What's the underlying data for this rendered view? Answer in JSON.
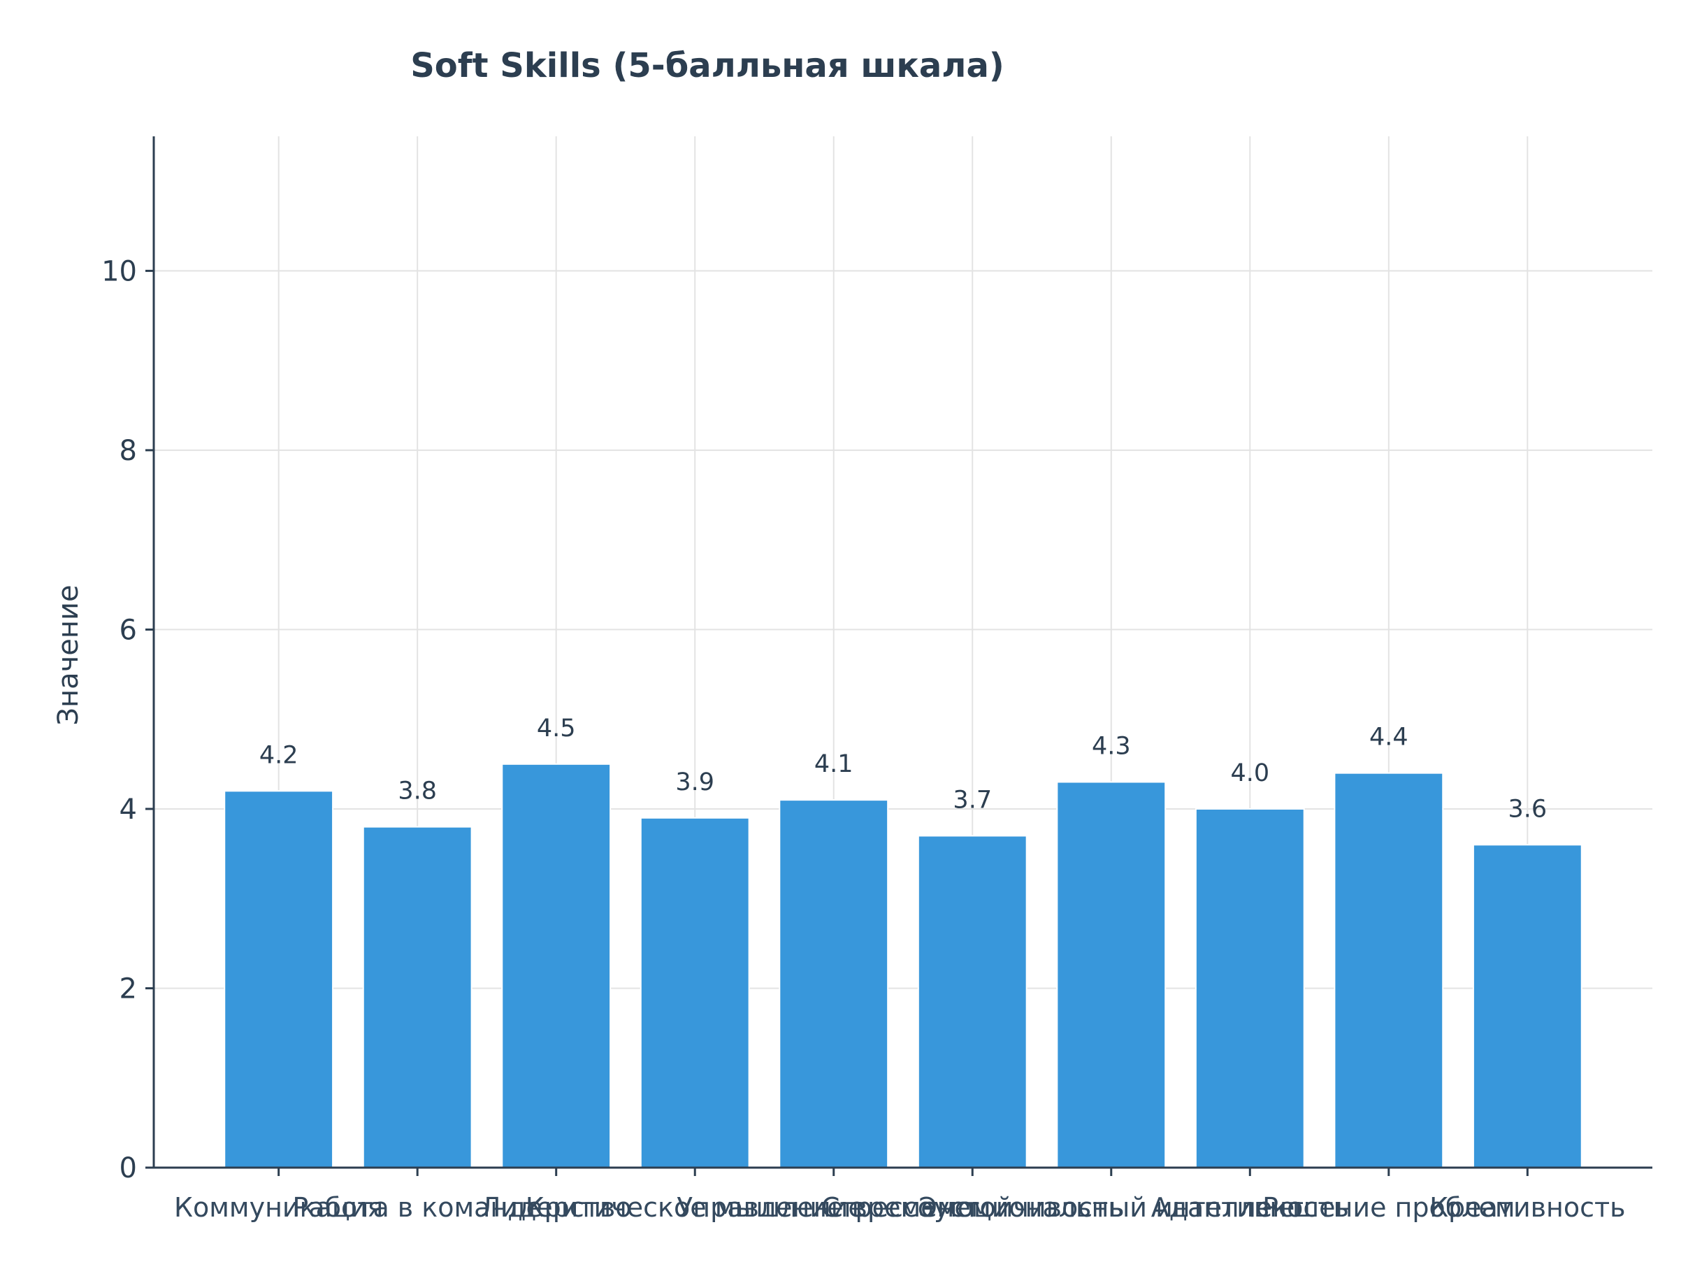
{
  "chart_data": {
    "type": "bar",
    "title": "Soft Skills (5-балльная шкала)",
    "xlabel": "",
    "ylabel": "Значение",
    "ylim": [
      0,
      11.5
    ],
    "yticks": [
      0,
      2,
      4,
      6,
      8,
      10
    ],
    "grid": true,
    "bar_color": "#3897db",
    "categories": [
      "Коммуникация",
      "Работа в команде",
      "Лидерство",
      "Критическое мышление",
      "Управление временем",
      "Стрессоустойчивость",
      "Эмоциональный интеллект",
      "Адаптивность",
      "Решение проблем",
      "Креативность"
    ],
    "values": [
      4.2,
      3.8,
      4.5,
      3.9,
      4.1,
      3.7,
      4.3,
      4.0,
      4.4,
      3.6
    ],
    "data_labels": [
      "4.2",
      "3.8",
      "4.5",
      "3.9",
      "4.1",
      "3.7",
      "4.3",
      "4.0",
      "4.4",
      "3.6"
    ]
  }
}
